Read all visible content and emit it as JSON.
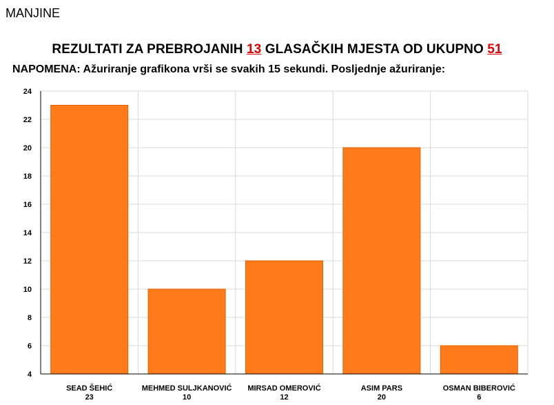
{
  "section_label": "MANJINE",
  "headline": {
    "prefix": "REZULTATI ZA PREBROJANIH",
    "counted": "13",
    "middle": "GLASAČKIH MJESTA OD UKUPNO",
    "total": "51"
  },
  "note": "NAPOMENA: Ažuriranje grafikona vrši se svakih 15 sekundi. Posljednje ažuriranje:",
  "colors": {
    "bar": "#ff7a1a",
    "bar_edge": "#e06000",
    "grid": "#d9d9d9",
    "highlight": "#e00000"
  },
  "chart_data": {
    "type": "bar",
    "categories": [
      "SEAD ŠEHIĆ",
      "MEHMED SULJKANOVIĆ",
      "MIRSAD OMEROVIĆ",
      "ASIM PARS",
      "OSMAN BIBEROVIĆ"
    ],
    "values": [
      23,
      10,
      12,
      20,
      6
    ],
    "value_labels": [
      "23",
      "10",
      "12",
      "20",
      "6"
    ],
    "ylim": [
      4,
      24
    ],
    "yticks": [
      4,
      6,
      8,
      10,
      12,
      14,
      16,
      18,
      20,
      22,
      24
    ],
    "grid": true,
    "legend": "none"
  }
}
